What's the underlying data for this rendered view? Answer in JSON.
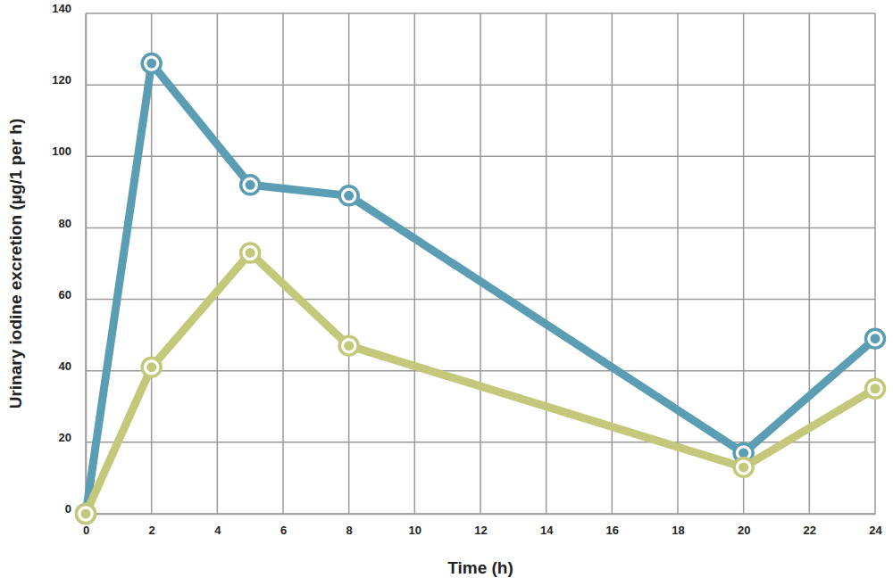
{
  "chart_data": {
    "type": "line",
    "x_label": "Time (h)",
    "y_label": "Urinary iodine excretion (µg/1 per h)",
    "x": [
      0,
      2,
      5,
      8,
      20,
      24
    ],
    "series": [
      {
        "color": "#5b9db3",
        "marker": "circle",
        "values": [
          0,
          126,
          92,
          89,
          17,
          49
        ]
      },
      {
        "color": "#c3c87a",
        "marker": "circle",
        "values": [
          0,
          41,
          73,
          47,
          13,
          35
        ]
      }
    ],
    "xlim": [
      0,
      24
    ],
    "xticks": [
      0,
      2,
      4,
      6,
      8,
      10,
      12,
      14,
      16,
      18,
      20,
      22,
      24
    ],
    "ylim": [
      0,
      140
    ],
    "yticks": [
      0,
      20,
      40,
      60,
      80,
      100,
      120,
      140
    ],
    "grid": true
  }
}
